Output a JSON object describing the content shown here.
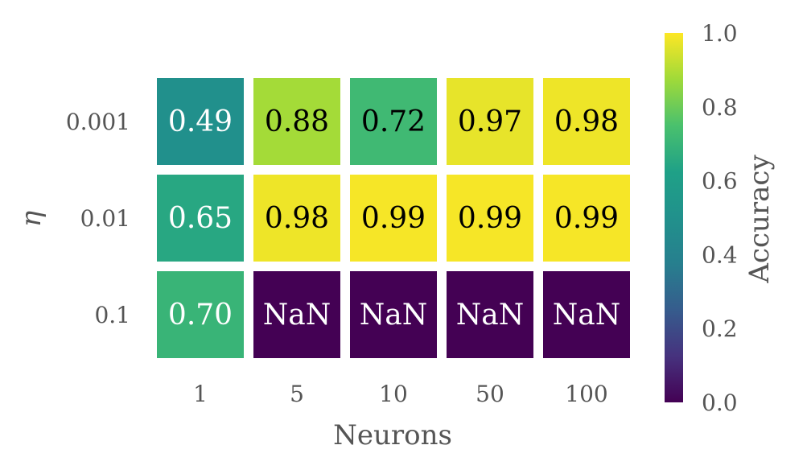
{
  "chart_data": {
    "type": "heatmap",
    "x_categories": [
      "1",
      "5",
      "10",
      "50",
      "100"
    ],
    "y_categories": [
      "0.001",
      "0.01",
      "0.1"
    ],
    "values": [
      [
        0.49,
        0.88,
        0.72,
        0.97,
        0.98
      ],
      [
        0.65,
        0.98,
        0.99,
        0.99,
        0.99
      ],
      [
        0.7,
        null,
        null,
        null,
        null
      ]
    ],
    "cell_labels": [
      [
        "0.49",
        "0.88",
        "0.72",
        "0.97",
        "0.98"
      ],
      [
        "0.65",
        "0.98",
        "0.99",
        "0.99",
        "0.99"
      ],
      [
        "0.70",
        "NaN",
        "NaN",
        "NaN",
        "NaN"
      ]
    ],
    "nan_color_value": 0.0,
    "xlabel": "Neurons",
    "ylabel": "η",
    "colorbar": {
      "label": "Accuracy",
      "range": [
        0.0,
        1.0
      ],
      "ticks": [
        "0.0",
        "0.2",
        "0.4",
        "0.6",
        "0.8",
        "1.0"
      ],
      "colormap": "viridis"
    }
  }
}
